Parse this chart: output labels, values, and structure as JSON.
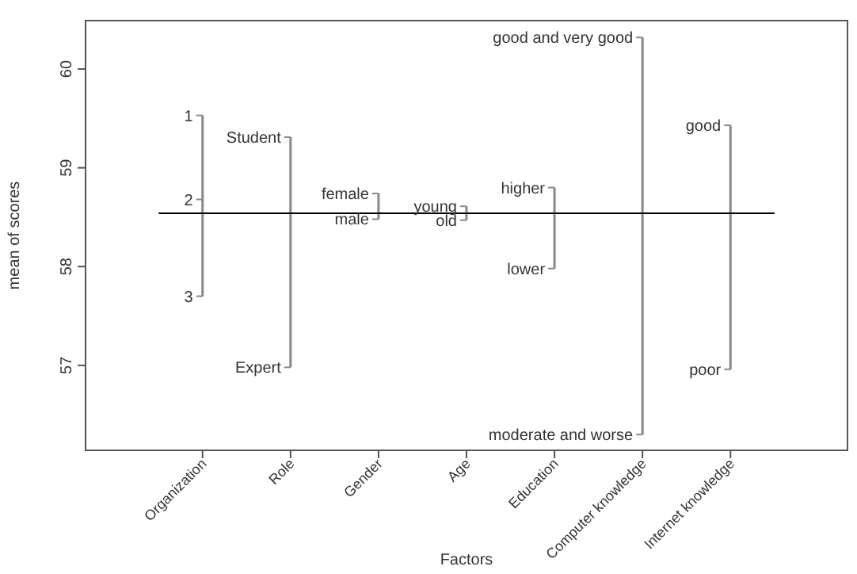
{
  "chart_data": {
    "type": "bar",
    "xlabel": "Factors",
    "ylabel": "mean of scores",
    "categories": [
      "Organization",
      "Role",
      "Gender",
      "Age",
      "Education",
      "Computer knowledge",
      "Internet knowledge"
    ],
    "base": [
      57.7,
      56.98,
      58.48,
      58.47,
      57.98,
      56.3,
      56.96
    ],
    "values": [
      1.83,
      2.33,
      0.26,
      0.14,
      0.82,
      4.02,
      2.47
    ],
    "color": "#888888",
    "ylim": [
      56.14,
      60.49
    ],
    "yticks": [
      57,
      58,
      59,
      60
    ],
    "ref_lines": [
      {
        "axis": "y",
        "value": 58.54,
        "color": "#000000"
      }
    ],
    "annotations": [
      {
        "text": "1",
        "x": "Organization",
        "y": 59.53
      },
      {
        "text": "2",
        "x": "Organization",
        "y": 58.68
      },
      {
        "text": "3",
        "x": "Organization",
        "y": 57.7
      },
      {
        "text": "Student",
        "x": "Role",
        "y": 59.31
      },
      {
        "text": "Expert",
        "x": "Role",
        "y": 56.98
      },
      {
        "text": "female",
        "x": "Gender",
        "y": 58.74
      },
      {
        "text": "male",
        "x": "Gender",
        "y": 58.48
      },
      {
        "text": "young",
        "x": "Age",
        "y": 58.61
      },
      {
        "text": "old",
        "x": "Age",
        "y": 58.47
      },
      {
        "text": "higher",
        "x": "Education",
        "y": 58.8
      },
      {
        "text": "lower",
        "x": "Education",
        "y": 57.98
      },
      {
        "text": "good and very good",
        "x": "Computer knowledge",
        "y": 60.32
      },
      {
        "text": "moderate and worse",
        "x": "Computer knowledge",
        "y": 56.3
      },
      {
        "text": "good",
        "x": "Internet knowledge",
        "y": 59.43
      },
      {
        "text": "poor",
        "x": "Internet knowledge",
        "y": 56.96
      }
    ],
    "grid": false
  }
}
